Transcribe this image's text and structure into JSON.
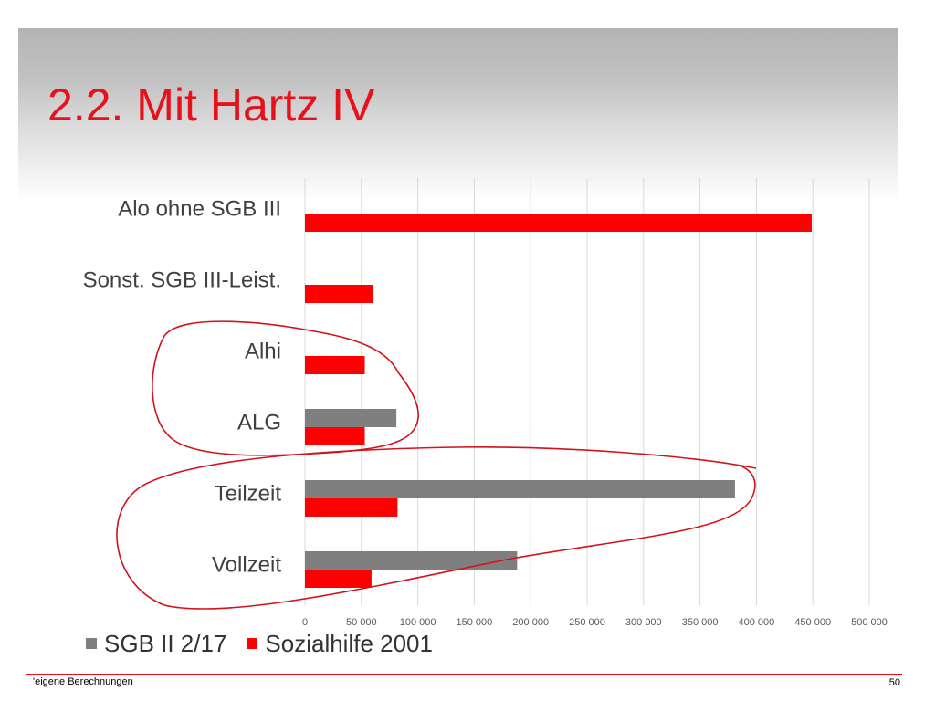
{
  "slide": {
    "title": "2.2. Mit Hartz IV",
    "footnote": "eigene Berechnungen",
    "footnote_prefix": "'",
    "page_number": "50"
  },
  "colors": {
    "title": "#e8111b",
    "series_gray": "#7f7f7f",
    "series_red": "#ff0000",
    "annotation": "#d2121c"
  },
  "chart_data": {
    "type": "bar",
    "orientation": "horizontal",
    "categories": [
      "Alo ohne SGB III",
      "Sonst. SGB III-Leist.",
      "Alhi",
      "ALG",
      "Teilzeit",
      "Vollzeit"
    ],
    "series": [
      {
        "name": "SGB II 2/17",
        "color": "#7f7f7f",
        "values": [
          null,
          null,
          null,
          81000,
          381000,
          188000
        ]
      },
      {
        "name": "Sozialhilfe 2001",
        "color": "#ff0000",
        "values": [
          449000,
          60000,
          53000,
          53000,
          82000,
          59000
        ]
      }
    ],
    "xlim": [
      0,
      500000
    ],
    "x_ticks": [
      "0",
      "50 000",
      "100 000",
      "150 000",
      "200 000",
      "250 000",
      "300 000",
      "350 000",
      "400 000",
      "450 000",
      "500 000"
    ],
    "grid": true,
    "legend_position": "bottom-left",
    "annotations": [
      "hand-drawn loop around Alhi and ALG",
      "hand-drawn loop around Teilzeit and Vollzeit"
    ]
  }
}
